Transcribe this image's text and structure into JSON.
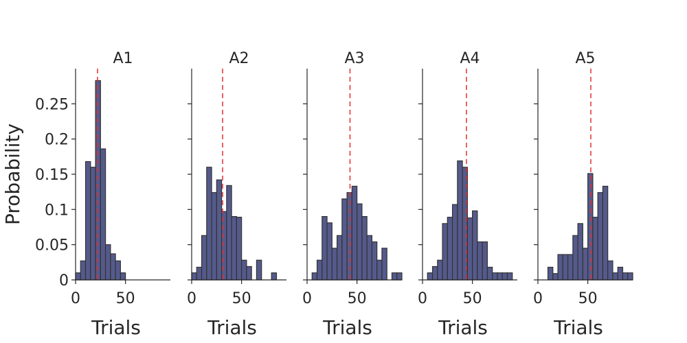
{
  "chart_data": {
    "type": "bar",
    "ylabel": "Probability",
    "ylim": [
      0,
      0.3
    ],
    "yticks": [
      0,
      0.05,
      0.1,
      0.15,
      0.2,
      0.25
    ],
    "ytick_labels": [
      "0",
      "0.05",
      "0.1",
      "0.15",
      "0.2",
      "0.25"
    ],
    "bar_color": "#555a8c",
    "edge_color": "#333333",
    "mean_line_color": "#e03030",
    "panels": [
      {
        "title": "A1",
        "xlabel": "Trials",
        "xlim": [
          0,
          95
        ],
        "xticks": [
          0,
          50
        ],
        "xtick_labels": [
          "0",
          "50"
        ],
        "bin_width": 5,
        "bin_starts": [
          0,
          5,
          10,
          15,
          20,
          25,
          30,
          35,
          40,
          45
        ],
        "values": [
          0.01,
          0.027,
          0.168,
          0.16,
          0.283,
          0.186,
          0.05,
          0.037,
          0.027,
          0.01
        ],
        "mean": 22
      },
      {
        "title": "A2",
        "xlabel": "Trials",
        "xlim": [
          0,
          95
        ],
        "xticks": [
          0,
          50
        ],
        "xtick_labels": [
          "0",
          "50"
        ],
        "bin_width": 5,
        "bin_starts": [
          0,
          5,
          10,
          15,
          20,
          25,
          30,
          35,
          40,
          45,
          50,
          55,
          60,
          65,
          70,
          75,
          80,
          85
        ],
        "values": [
          0.01,
          0.018,
          0.063,
          0.16,
          0.124,
          0.142,
          0.097,
          0.134,
          0.09,
          0.089,
          0.028,
          0.019,
          0,
          0.028,
          0,
          0,
          0.01,
          0
        ],
        "mean": 31
      },
      {
        "title": "A3",
        "xlabel": "Trials",
        "xlim": [
          0,
          95
        ],
        "xticks": [
          0,
          50
        ],
        "xtick_labels": [
          "0",
          "50"
        ],
        "bin_width": 5,
        "bin_starts": [
          0,
          5,
          10,
          15,
          20,
          25,
          30,
          35,
          40,
          45,
          50,
          55,
          60,
          65,
          70,
          75,
          80,
          85,
          90
        ],
        "values": [
          0,
          0.01,
          0.028,
          0.09,
          0.081,
          0.045,
          0.063,
          0.115,
          0.124,
          0.133,
          0.108,
          0.09,
          0.063,
          0.054,
          0.028,
          0.045,
          0,
          0.01,
          0.01
        ],
        "mean": 43
      },
      {
        "title": "A4",
        "xlabel": "Trials",
        "xlim": [
          0,
          95
        ],
        "xticks": [
          0,
          50
        ],
        "xtick_labels": [
          "0",
          "50"
        ],
        "bin_width": 5,
        "bin_starts": [
          0,
          5,
          10,
          15,
          20,
          25,
          30,
          35,
          40,
          45,
          50,
          55,
          60,
          65,
          70,
          75,
          80,
          85
        ],
        "values": [
          0,
          0.01,
          0.019,
          0.028,
          0.08,
          0.089,
          0.107,
          0.169,
          0.16,
          0.088,
          0.098,
          0.054,
          0.054,
          0.018,
          0.01,
          0.01,
          0.01,
          0.01
        ],
        "mean": 44
      },
      {
        "title": "A5",
        "xlabel": "Trials",
        "xlim": [
          0,
          95
        ],
        "xticks": [
          0,
          50
        ],
        "xtick_labels": [
          "0",
          "50"
        ],
        "bin_width": 5,
        "bin_starts": [
          10,
          15,
          20,
          25,
          30,
          35,
          40,
          45,
          50,
          55,
          60,
          65,
          70,
          75,
          80,
          85,
          90
        ],
        "values": [
          0.018,
          0.009,
          0.036,
          0.036,
          0.036,
          0.063,
          0.08,
          0.045,
          0.151,
          0.089,
          0.124,
          0.133,
          0.027,
          0.01,
          0.018,
          0.01,
          0.01
        ],
        "mean": 53
      }
    ]
  }
}
